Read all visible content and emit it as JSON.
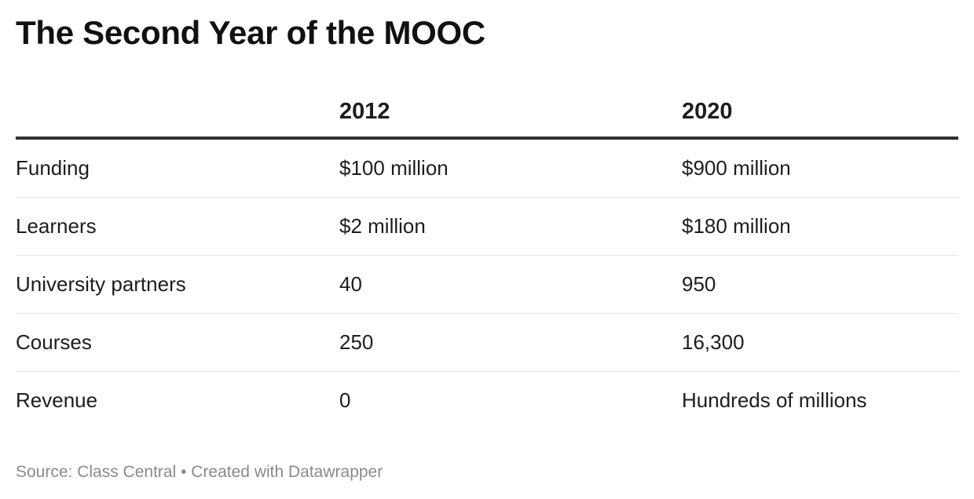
{
  "chart_data": {
    "type": "table",
    "title": "The Second Year of the MOOC",
    "columns": [
      "",
      "2012",
      "2020"
    ],
    "rows": [
      {
        "label": "Funding",
        "values": [
          "$100 million",
          "$900 million"
        ]
      },
      {
        "label": "Learners",
        "values": [
          "$2 million",
          "$180 million"
        ]
      },
      {
        "label": "University partners",
        "values": [
          "40",
          "950"
        ]
      },
      {
        "label": "Courses",
        "values": [
          "250",
          "16,300"
        ]
      },
      {
        "label": "Revenue",
        "values": [
          "0",
          "Hundreds of millions"
        ]
      }
    ],
    "footer": "Source: Class Central • Created with Datawrapper"
  }
}
